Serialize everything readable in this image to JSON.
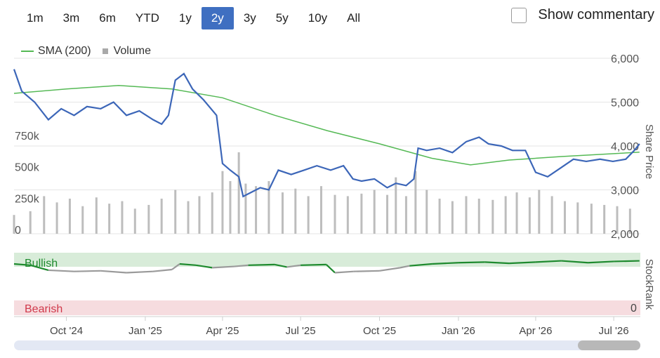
{
  "range_buttons": [
    {
      "label": "1m",
      "active": false
    },
    {
      "label": "3m",
      "active": false
    },
    {
      "label": "6m",
      "active": false
    },
    {
      "label": "YTD",
      "active": false
    },
    {
      "label": "1y",
      "active": false
    },
    {
      "label": "2y",
      "active": true
    },
    {
      "label": "3y",
      "active": false
    },
    {
      "label": "5y",
      "active": false
    },
    {
      "label": "10y",
      "active": false
    },
    {
      "label": "All",
      "active": false
    }
  ],
  "commentary": {
    "label": "Show commentary",
    "checked": false
  },
  "legend": {
    "sma_label": "SMA (200)",
    "volume_label": "Volume"
  },
  "colors": {
    "price": "#3c66b8",
    "sma": "#55b955",
    "volume": "#bdbdbd",
    "bullish_bg": "#d8ecd9",
    "bearish_bg": "#f6dcdf",
    "bullish_line": "#1e8a2e",
    "neutral_line": "#9a9a9a",
    "bearish_text": "#d0384a",
    "active_button": "#3f6fc1"
  },
  "chart_data": {
    "type": "line",
    "x_tick_labels": [
      "Oct '24",
      "Jan '25",
      "Apr '25",
      "Jul '25",
      "Oct '25",
      "Jan '26",
      "Apr '26",
      "Jul '26"
    ],
    "x_range": [
      "2024-08-01",
      "2026-08-01"
    ],
    "y_axis_price": {
      "label": "Share Price",
      "ticks": [
        "6,000",
        "5,000",
        "4,000",
        "3,000",
        "2,000"
      ],
      "range": [
        2000,
        6000
      ]
    },
    "y_axis_volume": {
      "ticks": [
        "750k",
        "500k",
        "250k",
        "0"
      ],
      "range": [
        0,
        1400000
      ]
    },
    "y_axis_stockrank": {
      "label": "StockRank",
      "zero_label": "0"
    },
    "stockrank_zones": {
      "bullish_label": "Bullish",
      "bearish_label": "Bearish"
    },
    "series": [
      {
        "name": "SMA (200)",
        "kind": "sma",
        "points": [
          [
            "2024-08-01",
            5200
          ],
          [
            "2024-10-01",
            5300
          ],
          [
            "2024-12-01",
            5380
          ],
          [
            "2025-02-01",
            5300
          ],
          [
            "2025-04-01",
            5100
          ],
          [
            "2025-06-01",
            4700
          ],
          [
            "2025-08-01",
            4350
          ],
          [
            "2025-10-01",
            4050
          ],
          [
            "2025-12-01",
            3720
          ],
          [
            "2026-01-15",
            3570
          ],
          [
            "2026-03-01",
            3680
          ],
          [
            "2026-05-01",
            3760
          ],
          [
            "2026-07-31",
            3860
          ]
        ]
      },
      {
        "name": "Share Price",
        "kind": "price",
        "points": [
          [
            "2024-08-01",
            5750
          ],
          [
            "2024-08-10",
            5250
          ],
          [
            "2024-08-25",
            5000
          ],
          [
            "2024-09-10",
            4600
          ],
          [
            "2024-09-25",
            4850
          ],
          [
            "2024-10-10",
            4700
          ],
          [
            "2024-10-25",
            4900
          ],
          [
            "2024-11-10",
            4850
          ],
          [
            "2024-11-25",
            5000
          ],
          [
            "2024-12-10",
            4700
          ],
          [
            "2024-12-25",
            4800
          ],
          [
            "2025-01-10",
            4600
          ],
          [
            "2025-01-20",
            4500
          ],
          [
            "2025-01-28",
            4700
          ],
          [
            "2025-02-05",
            5500
          ],
          [
            "2025-02-15",
            5650
          ],
          [
            "2025-02-25",
            5300
          ],
          [
            "2025-03-10",
            5050
          ],
          [
            "2025-03-25",
            4700
          ],
          [
            "2025-04-01",
            3600
          ],
          [
            "2025-04-10",
            3450
          ],
          [
            "2025-04-20",
            3300
          ],
          [
            "2025-04-25",
            2850
          ],
          [
            "2025-05-05",
            2950
          ],
          [
            "2025-05-15",
            3050
          ],
          [
            "2025-05-25",
            3000
          ],
          [
            "2025-06-05",
            3450
          ],
          [
            "2025-06-20",
            3350
          ],
          [
            "2025-07-05",
            3450
          ],
          [
            "2025-07-20",
            3550
          ],
          [
            "2025-08-05",
            3450
          ],
          [
            "2025-08-20",
            3550
          ],
          [
            "2025-08-31",
            3250
          ],
          [
            "2025-09-10",
            3200
          ],
          [
            "2025-09-25",
            3250
          ],
          [
            "2025-10-10",
            3050
          ],
          [
            "2025-10-20",
            3150
          ],
          [
            "2025-11-01",
            3100
          ],
          [
            "2025-11-10",
            3250
          ],
          [
            "2025-11-15",
            3950
          ],
          [
            "2025-11-25",
            3900
          ],
          [
            "2025-12-10",
            3950
          ],
          [
            "2025-12-25",
            3850
          ],
          [
            "2026-01-10",
            4100
          ],
          [
            "2026-01-25",
            4200
          ],
          [
            "2026-02-05",
            4050
          ],
          [
            "2026-02-20",
            4000
          ],
          [
            "2026-03-05",
            3900
          ],
          [
            "2026-03-20",
            3900
          ],
          [
            "2026-04-01",
            3400
          ],
          [
            "2026-04-15",
            3300
          ],
          [
            "2026-04-30",
            3500
          ],
          [
            "2026-05-15",
            3700
          ],
          [
            "2026-05-30",
            3650
          ],
          [
            "2026-06-15",
            3700
          ],
          [
            "2026-06-30",
            3650
          ],
          [
            "2026-07-15",
            3700
          ],
          [
            "2026-07-25",
            3900
          ],
          [
            "2026-07-31",
            4050
          ]
        ]
      }
    ],
    "volume_bars": [
      [
        "2024-08-01",
        150000
      ],
      [
        "2024-08-20",
        180000
      ],
      [
        "2024-09-05",
        300000
      ],
      [
        "2024-09-20",
        250000
      ],
      [
        "2024-10-05",
        280000
      ],
      [
        "2024-10-20",
        220000
      ],
      [
        "2024-11-05",
        290000
      ],
      [
        "2024-11-20",
        240000
      ],
      [
        "2024-12-05",
        260000
      ],
      [
        "2024-12-20",
        200000
      ],
      [
        "2025-01-05",
        230000
      ],
      [
        "2025-01-20",
        280000
      ],
      [
        "2025-02-05",
        350000
      ],
      [
        "2025-02-20",
        260000
      ],
      [
        "2025-03-05",
        300000
      ],
      [
        "2025-03-20",
        330000
      ],
      [
        "2025-04-01",
        500000
      ],
      [
        "2025-04-10",
        420000
      ],
      [
        "2025-04-20",
        650000
      ],
      [
        "2025-04-28",
        400000
      ],
      [
        "2025-05-10",
        380000
      ],
      [
        "2025-05-25",
        420000
      ],
      [
        "2025-06-10",
        330000
      ],
      [
        "2025-06-25",
        360000
      ],
      [
        "2025-07-10",
        300000
      ],
      [
        "2025-07-25",
        380000
      ],
      [
        "2025-08-10",
        310000
      ],
      [
        "2025-08-25",
        300000
      ],
      [
        "2025-09-10",
        320000
      ],
      [
        "2025-09-25",
        350000
      ],
      [
        "2025-10-10",
        310000
      ],
      [
        "2025-10-20",
        450000
      ],
      [
        "2025-11-01",
        300000
      ],
      [
        "2025-11-12",
        500000
      ],
      [
        "2025-11-25",
        350000
      ],
      [
        "2025-12-10",
        280000
      ],
      [
        "2025-12-25",
        260000
      ],
      [
        "2026-01-10",
        300000
      ],
      [
        "2026-01-25",
        280000
      ],
      [
        "2026-02-10",
        270000
      ],
      [
        "2026-02-25",
        300000
      ],
      [
        "2026-03-10",
        330000
      ],
      [
        "2026-03-25",
        290000
      ],
      [
        "2026-04-05",
        350000
      ],
      [
        "2026-04-20",
        300000
      ],
      [
        "2026-05-05",
        260000
      ],
      [
        "2026-05-20",
        250000
      ],
      [
        "2026-06-05",
        240000
      ],
      [
        "2026-06-20",
        230000
      ],
      [
        "2026-07-05",
        220000
      ],
      [
        "2026-07-20",
        200000
      ]
    ],
    "stockrank_series": [
      [
        "2024-08-01",
        82,
        "bull"
      ],
      [
        "2024-08-20",
        80,
        "bull"
      ],
      [
        "2024-09-10",
        72,
        "neutral"
      ],
      [
        "2024-10-10",
        70,
        "neutral"
      ],
      [
        "2024-11-10",
        71,
        "neutral"
      ],
      [
        "2024-12-10",
        68,
        "neutral"
      ],
      [
        "2025-01-10",
        70,
        "neutral"
      ],
      [
        "2025-02-01",
        73,
        "neutral"
      ],
      [
        "2025-02-10",
        82,
        "bull"
      ],
      [
        "2025-03-01",
        80,
        "bull"
      ],
      [
        "2025-03-20",
        76,
        "neutral"
      ],
      [
        "2025-04-15",
        78,
        "neutral"
      ],
      [
        "2025-05-01",
        80,
        "bull"
      ],
      [
        "2025-06-01",
        81,
        "bull"
      ],
      [
        "2025-06-15",
        77,
        "neutral"
      ],
      [
        "2025-07-01",
        80,
        "bull"
      ],
      [
        "2025-07-31",
        81,
        "bull"
      ],
      [
        "2025-08-10",
        68,
        "neutral"
      ],
      [
        "2025-09-01",
        70,
        "neutral"
      ],
      [
        "2025-10-01",
        71,
        "neutral"
      ],
      [
        "2025-10-25",
        76,
        "neutral"
      ],
      [
        "2025-11-05",
        79,
        "bull"
      ],
      [
        "2025-12-01",
        82,
        "bull"
      ],
      [
        "2026-01-01",
        84,
        "bull"
      ],
      [
        "2026-02-01",
        85,
        "bull"
      ],
      [
        "2026-03-01",
        83,
        "bull"
      ],
      [
        "2026-04-01",
        85,
        "bull"
      ],
      [
        "2026-05-01",
        87,
        "bull"
      ],
      [
        "2026-06-01",
        84,
        "bull"
      ],
      [
        "2026-07-01",
        86,
        "bull"
      ],
      [
        "2026-07-31",
        87,
        "bull"
      ]
    ]
  },
  "scrollbar": {
    "thumb_start_fraction": 0.9,
    "thumb_end_fraction": 1.0
  }
}
